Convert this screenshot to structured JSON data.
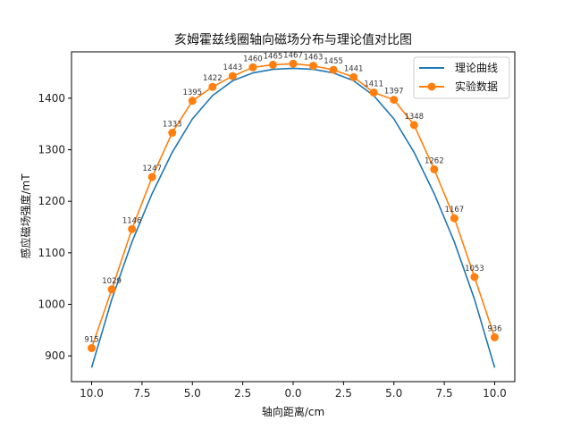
{
  "chart_data": {
    "type": "line",
    "title": "亥姆霍兹线圈轴向磁场分布与理论值对比图",
    "xlabel": "轴向距离/cm",
    "ylabel": "感应磁场强度/mT",
    "xlim": [
      -11,
      11
    ],
    "ylim": [
      850,
      1490
    ],
    "x_ticks": [
      -10,
      -7.5,
      -5,
      -2.5,
      0,
      2.5,
      5,
      7.5,
      10
    ],
    "x_tick_labels": [
      "10.0",
      "7.5",
      "5.0",
      "2.5",
      "0.0",
      "2.5",
      "5.0",
      "7.5",
      "10.0"
    ],
    "y_ticks": [
      900,
      1000,
      1100,
      1200,
      1300,
      1400
    ],
    "y_tick_labels": [
      "900",
      "1000",
      "1100",
      "1200",
      "1300",
      "1400"
    ],
    "grid": false,
    "legend_position": "top-right",
    "series": [
      {
        "name": "理论曲线",
        "kind": "curve",
        "color": "#1f77b4",
        "x": [
          -10,
          -9,
          -8,
          -7,
          -6,
          -5,
          -4,
          -3,
          -2,
          -1,
          0,
          1,
          2,
          3,
          4,
          5,
          6,
          7,
          8,
          9,
          10
        ],
        "values": [
          877,
          1010,
          1121,
          1215,
          1295,
          1360,
          1405,
          1434,
          1449,
          1456,
          1458,
          1456,
          1449,
          1434,
          1405,
          1360,
          1295,
          1215,
          1121,
          1010,
          877
        ]
      },
      {
        "name": "实验数据",
        "kind": "markers",
        "color": "#ff7f0e",
        "x": [
          -10,
          -9,
          -8,
          -7,
          -6,
          -5,
          -4,
          -3,
          -2,
          -1,
          0,
          1,
          2,
          3,
          4,
          5,
          6,
          7,
          8,
          9,
          10
        ],
        "values": [
          915,
          1029,
          1146,
          1247,
          1333,
          1395,
          1422,
          1443,
          1460,
          1465,
          1467,
          1463,
          1455,
          1441,
          1411,
          1397,
          1348,
          1262,
          1167,
          1053,
          936
        ],
        "data_labels": [
          "915",
          "1029",
          "1146",
          "1247",
          "1333",
          "1395",
          "1422",
          "1443",
          "1460",
          "1465",
          "1467",
          "1463",
          "1455",
          "1441",
          "1411",
          "1397",
          "1348",
          "1262",
          "1167",
          "1053",
          "936"
        ]
      }
    ]
  }
}
